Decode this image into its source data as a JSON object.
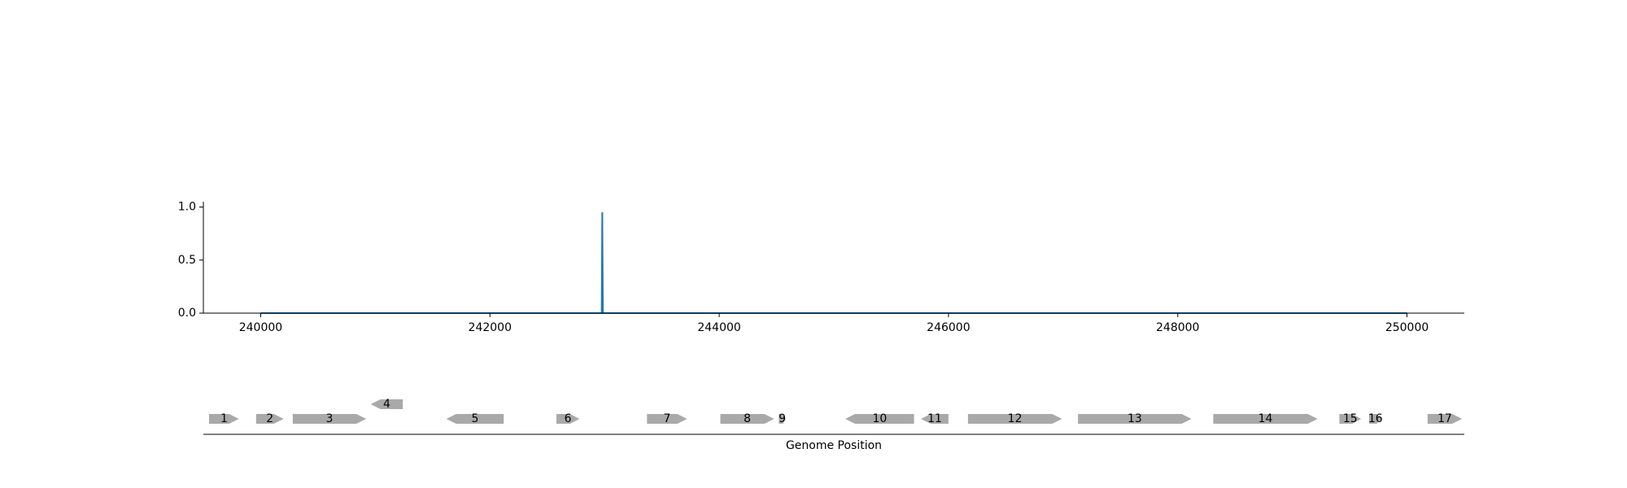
{
  "chart_data": [
    {
      "type": "line",
      "title": "",
      "xlabel": "",
      "ylabel": "",
      "xlim": [
        239500,
        250500
      ],
      "ylim": [
        0,
        1.05
      ],
      "xticks": [
        240000,
        242000,
        244000,
        246000,
        248000,
        250000
      ],
      "xtick_labels": [
        "240000",
        "242000",
        "244000",
        "246000",
        "248000",
        "250000"
      ],
      "yticks": [
        0.0,
        0.5,
        1.0
      ],
      "ytick_labels": [
        "0.0",
        "0.5",
        "1.0"
      ],
      "grid": false,
      "series": [
        {
          "color": "#1f77b4",
          "x": [
            240000,
            242975,
            242980,
            242985,
            250000
          ],
          "y": [
            0,
            0,
            0.95,
            0,
            0
          ]
        }
      ]
    },
    {
      "type": "gene_track",
      "xlabel": "Genome Position",
      "xlim": [
        239500,
        250500
      ],
      "gene_color": "#a9a9a9",
      "genes": [
        {
          "label": "1",
          "start": 239550,
          "end": 239810,
          "strand": "+",
          "row": 0
        },
        {
          "label": "2",
          "start": 239960,
          "end": 240200,
          "strand": "+",
          "row": 0
        },
        {
          "label": "3",
          "start": 240280,
          "end": 240920,
          "strand": "+",
          "row": 0
        },
        {
          "label": "4",
          "start": 240960,
          "end": 241240,
          "strand": "-",
          "row": 1
        },
        {
          "label": "5",
          "start": 241620,
          "end": 242120,
          "strand": "-",
          "row": 0
        },
        {
          "label": "6",
          "start": 242580,
          "end": 242780,
          "strand": "+",
          "row": 0
        },
        {
          "label": "7",
          "start": 243370,
          "end": 243720,
          "strand": "+",
          "row": 0
        },
        {
          "label": "8",
          "start": 244010,
          "end": 244480,
          "strand": "+",
          "row": 0
        },
        {
          "label": "9",
          "start": 244520,
          "end": 244580,
          "strand": "+",
          "row": 0
        },
        {
          "label": "10",
          "start": 245100,
          "end": 245700,
          "strand": "-",
          "row": 0
        },
        {
          "label": "11",
          "start": 245760,
          "end": 246000,
          "strand": "-",
          "row": 0
        },
        {
          "label": "12",
          "start": 246170,
          "end": 246990,
          "strand": "+",
          "row": 0
        },
        {
          "label": "13",
          "start": 247130,
          "end": 248120,
          "strand": "+",
          "row": 0
        },
        {
          "label": "14",
          "start": 248310,
          "end": 249220,
          "strand": "+",
          "row": 0
        },
        {
          "label": "15",
          "start": 249410,
          "end": 249600,
          "strand": "+",
          "row": 0
        },
        {
          "label": "16",
          "start": 249670,
          "end": 249780,
          "strand": "+",
          "row": 0
        },
        {
          "label": "17",
          "start": 250180,
          "end": 250480,
          "strand": "+",
          "row": 0
        }
      ]
    }
  ]
}
